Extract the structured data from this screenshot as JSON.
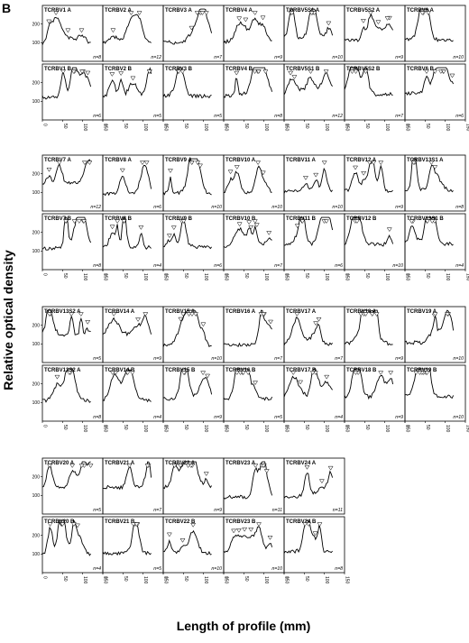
{
  "figure": {
    "panel_label": "B",
    "ylabel": "Relative optical density",
    "xlabel": "Length of profile (mm)"
  },
  "chart_data": {
    "type": "line",
    "title": "",
    "xlabel": "Length of profile (mm)",
    "ylabel": "Relative optical density",
    "xlim": [
      0,
      150
    ],
    "ylim": [
      0,
      300
    ],
    "x_ticks": [
      "0",
      "50",
      "100",
      "150"
    ],
    "y_ticks": [
      "100",
      "200"
    ],
    "grid": false,
    "groups": [
      {
        "panels": [
          {
            "name": "TCRBV1 A",
            "n": "n=8"
          },
          {
            "name": "TCRBV2 A",
            "n": "n=12"
          },
          {
            "name": "TCRBV3 A",
            "n": "n=7"
          },
          {
            "name": "TCRBV4 A",
            "n": "n=9"
          },
          {
            "name": "TCRBV5S1 A",
            "n": "n=10"
          },
          {
            "name": "TCRBV5S2 A",
            "n": "n=9"
          },
          {
            "name": "TCRBV6 A",
            "n": "n=10"
          },
          {
            "name": "TCRBV1 B",
            "n": "n=6"
          },
          {
            "name": "TCRBV2 B",
            "n": "n=5"
          },
          {
            "name": "TCRBV3 B",
            "n": "n=5"
          },
          {
            "name": "TCRBV4 B",
            "n": "n=8"
          },
          {
            "name": "TCRBV5S1 B",
            "n": "n=12"
          },
          {
            "name": "TCRBV5S2 B",
            "n": "n=7"
          },
          {
            "name": "TCRBV6 B",
            "n": "n=6"
          }
        ]
      },
      {
        "panels": [
          {
            "name": "TCRBV7 A",
            "n": "n=12"
          },
          {
            "name": "TCRBV8 A",
            "n": "n=6"
          },
          {
            "name": "TCRBV9 A",
            "n": "n=10"
          },
          {
            "name": "TCRBV10 A",
            "n": "n=10"
          },
          {
            "name": "TCRBV11 A",
            "n": "n=10"
          },
          {
            "name": "TCRBV12 A",
            "n": "n=9"
          },
          {
            "name": "TCRBV13S1 A",
            "n": "n=8"
          },
          {
            "name": "TCRBV7 B",
            "n": "n=8"
          },
          {
            "name": "TCRBV8 B",
            "n": "n=4"
          },
          {
            "name": "TCRBV9 B",
            "n": "n=6"
          },
          {
            "name": "TCRBV10 B",
            "n": "n=7"
          },
          {
            "name": "TCRBV11 B",
            "n": "n=6"
          },
          {
            "name": "TCRBV12 B",
            "n": "n=10"
          },
          {
            "name": "TCRBV13S1 B",
            "n": "n=4"
          }
        ]
      },
      {
        "panels": [
          {
            "name": "TCRBV13S2 A",
            "n": "n=5"
          },
          {
            "name": "TCRBV14 A",
            "n": "n=9"
          },
          {
            "name": "TCRBV15 A",
            "n": "n=10"
          },
          {
            "name": "TCRBV16 A",
            "n": "n=7"
          },
          {
            "name": "TCRBV17 A",
            "n": "n=7"
          },
          {
            "name": "TCRBV18 A",
            "n": "n=9"
          },
          {
            "name": "TCRBV19 A",
            "n": "n=10"
          },
          {
            "name": "TCRBV13S2 A",
            "n": "n=8"
          },
          {
            "name": "TCRBV14 B",
            "n": "n=4"
          },
          {
            "name": "TCRBV15 B",
            "n": "n=9"
          },
          {
            "name": "TCRBV16 B",
            "n": "n=5"
          },
          {
            "name": "TCRBV17 B",
            "n": "n=4"
          },
          {
            "name": "TCRBV18 B",
            "n": "n=9"
          },
          {
            "name": "TCRBV19 B",
            "n": "n=10"
          }
        ]
      },
      {
        "panels": [
          {
            "name": "TCRBV20 A",
            "n": "n=5"
          },
          {
            "name": "TCRBV21 A",
            "n": "n=7"
          },
          {
            "name": "TCRBV22 A",
            "n": "n=9"
          },
          {
            "name": "TCRBV23 A",
            "n": "n=11"
          },
          {
            "name": "TCRBV24 A",
            "n": "n=11"
          },
          {
            "name": "TCRBV20 B",
            "n": "n=4"
          },
          {
            "name": "TCRBV21 B",
            "n": "n=5"
          },
          {
            "name": "TCRBV22 B",
            "n": "n=10"
          },
          {
            "name": "TCRBV23 B",
            "n": "n=10"
          },
          {
            "name": "TCRBV24 B",
            "n": "n=8"
          }
        ]
      }
    ]
  }
}
